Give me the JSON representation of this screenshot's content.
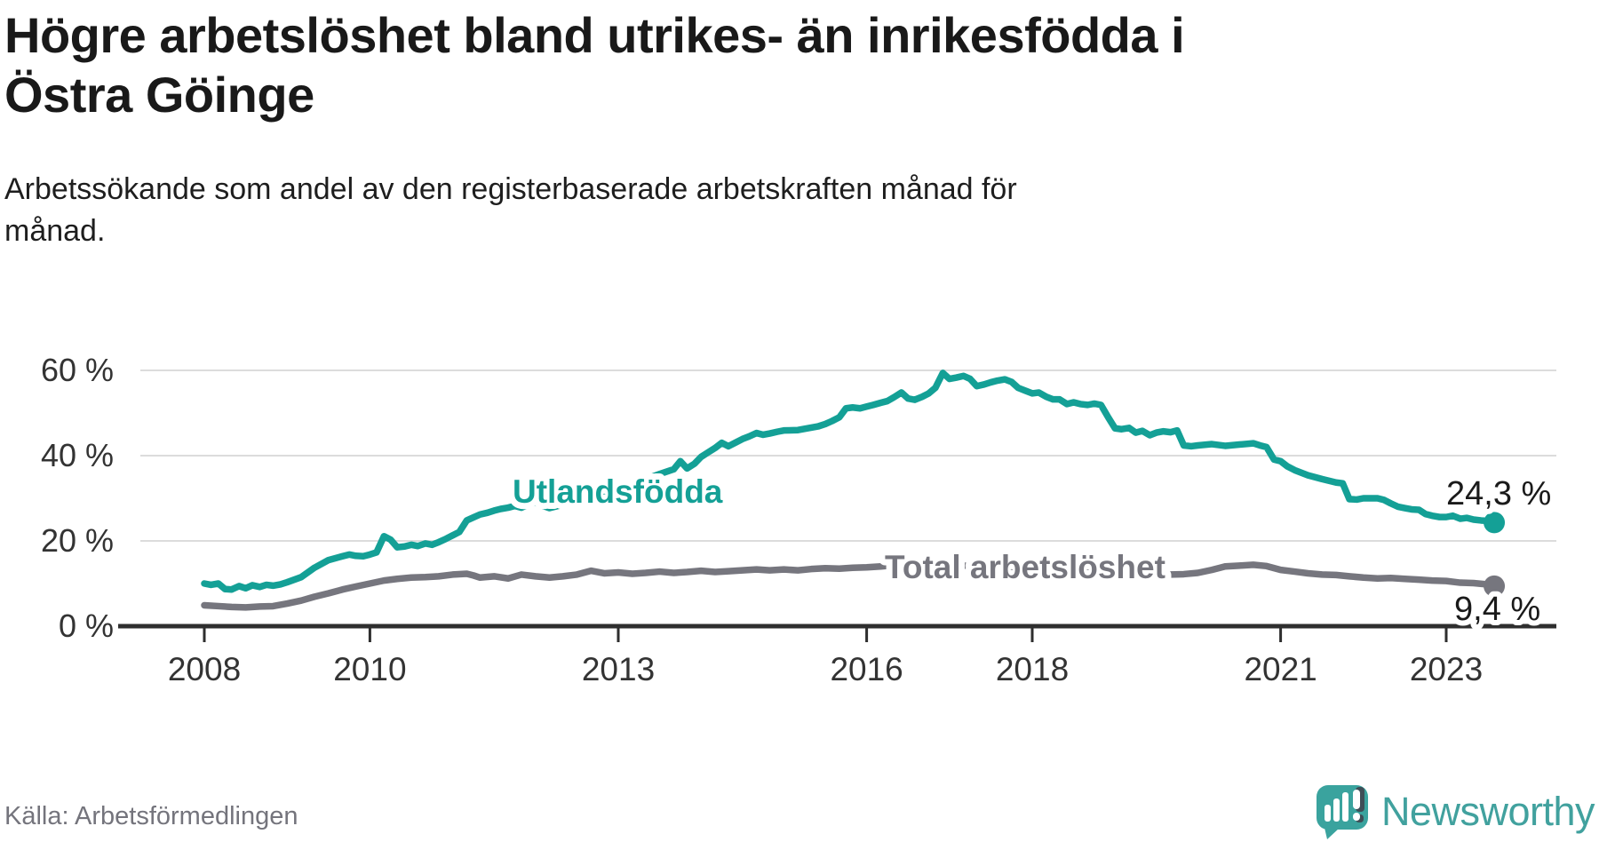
{
  "header": {
    "title_line1": "Högre arbetslöshet bland utrikes- än inrikesfödda i",
    "title_line2": "Östra Göinge",
    "subtitle_line1": "Arbetssökande som andel av den registerbaserade arbetskraften månad för",
    "subtitle_line2": "månad."
  },
  "footer": {
    "source": "Källa: Arbetsförmedlingen",
    "brand": "Newsworthy"
  },
  "colors": {
    "foreign_born": "#14a096",
    "total": "#76767e",
    "gridline": "#dcdcdc",
    "axis": "#2e2e2e",
    "tick_text": "#333333",
    "value_text": "#1a1a1a",
    "logo_teal": "#3aa39e",
    "logo_dark": "#3f4e57"
  },
  "chart_data": {
    "type": "line",
    "title": "Högre arbetslöshet bland utrikes- än inrikesfödda i Östra Göinge",
    "subtitle": "Arbetssökande som andel av den registerbaserade arbetskraften månad för månad.",
    "unit": "%",
    "x_axis": {
      "ticks": [
        2008,
        2010,
        2013,
        2016,
        2018,
        2021,
        2023
      ],
      "range": [
        2008,
        2023.58
      ]
    },
    "y_axis": {
      "ticks": [
        {
          "value": 60,
          "label": "60 %"
        },
        {
          "value": 40,
          "label": "40 %"
        },
        {
          "value": 20,
          "label": "20 %"
        },
        {
          "value": 0,
          "label": "0 %"
        }
      ],
      "range": [
        0,
        65
      ]
    },
    "grid": true,
    "legend_position": "inline-labels",
    "series": [
      {
        "name": "Utlandsfödda",
        "color": "#14a096",
        "end_value": 24.3,
        "end_label": "24,3 %",
        "points": [
          [
            2008.0,
            10.0
          ],
          [
            2008.08,
            9.7
          ],
          [
            2008.17,
            10.0
          ],
          [
            2008.25,
            8.7
          ],
          [
            2008.33,
            8.6
          ],
          [
            2008.42,
            9.4
          ],
          [
            2008.5,
            8.9
          ],
          [
            2008.58,
            9.6
          ],
          [
            2008.67,
            9.2
          ],
          [
            2008.75,
            9.7
          ],
          [
            2008.83,
            9.5
          ],
          [
            2008.92,
            9.8
          ],
          [
            2009.0,
            10.3
          ],
          [
            2009.17,
            11.5
          ],
          [
            2009.33,
            13.7
          ],
          [
            2009.5,
            15.5
          ],
          [
            2009.67,
            16.4
          ],
          [
            2009.75,
            16.8
          ],
          [
            2009.83,
            16.5
          ],
          [
            2009.92,
            16.4
          ],
          [
            2010.0,
            16.8
          ],
          [
            2010.08,
            17.3
          ],
          [
            2010.17,
            21.1
          ],
          [
            2010.25,
            20.3
          ],
          [
            2010.33,
            18.5
          ],
          [
            2010.42,
            18.7
          ],
          [
            2010.5,
            19.1
          ],
          [
            2010.58,
            18.8
          ],
          [
            2010.67,
            19.4
          ],
          [
            2010.75,
            19.1
          ],
          [
            2010.83,
            19.7
          ],
          [
            2010.92,
            20.5
          ],
          [
            2011.0,
            21.3
          ],
          [
            2011.08,
            22.1
          ],
          [
            2011.17,
            24.8
          ],
          [
            2011.25,
            25.5
          ],
          [
            2011.33,
            26.2
          ],
          [
            2011.42,
            26.6
          ],
          [
            2011.5,
            27.1
          ],
          [
            2011.58,
            27.5
          ],
          [
            2011.67,
            27.8
          ],
          [
            2011.75,
            28.2
          ],
          [
            2011.83,
            27.8
          ],
          [
            2011.92,
            28.6
          ],
          [
            2012.0,
            29.0
          ],
          [
            2012.08,
            28.3
          ],
          [
            2012.17,
            27.7
          ],
          [
            2012.33,
            28.5
          ],
          [
            2012.5,
            29.7
          ],
          [
            2012.67,
            30.8
          ],
          [
            2012.83,
            31.7
          ],
          [
            2013.0,
            32.7
          ],
          [
            2013.17,
            33.6
          ],
          [
            2013.33,
            34.5
          ],
          [
            2013.5,
            35.7
          ],
          [
            2013.67,
            36.8
          ],
          [
            2013.75,
            38.7
          ],
          [
            2013.83,
            37.0
          ],
          [
            2013.92,
            38.1
          ],
          [
            2014.0,
            39.7
          ],
          [
            2014.08,
            40.7
          ],
          [
            2014.17,
            41.8
          ],
          [
            2014.25,
            43.0
          ],
          [
            2014.33,
            42.2
          ],
          [
            2014.42,
            43.1
          ],
          [
            2014.5,
            43.9
          ],
          [
            2014.58,
            44.5
          ],
          [
            2014.67,
            45.3
          ],
          [
            2014.75,
            44.9
          ],
          [
            2014.83,
            45.2
          ],
          [
            2014.92,
            45.6
          ],
          [
            2015.0,
            45.9
          ],
          [
            2015.17,
            46.0
          ],
          [
            2015.25,
            46.3
          ],
          [
            2015.42,
            46.9
          ],
          [
            2015.5,
            47.4
          ],
          [
            2015.58,
            48.1
          ],
          [
            2015.67,
            49.0
          ],
          [
            2015.75,
            51.1
          ],
          [
            2015.83,
            51.3
          ],
          [
            2015.92,
            51.1
          ],
          [
            2016.0,
            51.5
          ],
          [
            2016.08,
            51.9
          ],
          [
            2016.17,
            52.4
          ],
          [
            2016.25,
            52.8
          ],
          [
            2016.33,
            53.7
          ],
          [
            2016.42,
            54.8
          ],
          [
            2016.5,
            53.4
          ],
          [
            2016.58,
            53.1
          ],
          [
            2016.67,
            53.8
          ],
          [
            2016.75,
            54.6
          ],
          [
            2016.83,
            55.9
          ],
          [
            2016.92,
            59.4
          ],
          [
            2017.0,
            58.0
          ],
          [
            2017.08,
            58.3
          ],
          [
            2017.17,
            58.7
          ],
          [
            2017.25,
            58.0
          ],
          [
            2017.33,
            56.3
          ],
          [
            2017.42,
            56.7
          ],
          [
            2017.5,
            57.2
          ],
          [
            2017.58,
            57.6
          ],
          [
            2017.67,
            57.9
          ],
          [
            2017.75,
            57.3
          ],
          [
            2017.83,
            55.9
          ],
          [
            2017.92,
            55.2
          ],
          [
            2018.0,
            54.6
          ],
          [
            2018.08,
            54.8
          ],
          [
            2018.17,
            53.8
          ],
          [
            2018.25,
            53.2
          ],
          [
            2018.33,
            53.2
          ],
          [
            2018.42,
            52.1
          ],
          [
            2018.5,
            52.5
          ],
          [
            2018.58,
            52.1
          ],
          [
            2018.67,
            51.9
          ],
          [
            2018.75,
            52.2
          ],
          [
            2018.83,
            51.9
          ],
          [
            2018.92,
            48.9
          ],
          [
            2019.0,
            46.4
          ],
          [
            2019.08,
            46.2
          ],
          [
            2019.17,
            46.5
          ],
          [
            2019.25,
            45.4
          ],
          [
            2019.33,
            45.8
          ],
          [
            2019.42,
            44.8
          ],
          [
            2019.5,
            45.4
          ],
          [
            2019.58,
            45.7
          ],
          [
            2019.67,
            45.5
          ],
          [
            2019.75,
            45.9
          ],
          [
            2019.83,
            42.4
          ],
          [
            2019.92,
            42.2
          ],
          [
            2020.0,
            42.4
          ],
          [
            2020.17,
            42.7
          ],
          [
            2020.33,
            42.3
          ],
          [
            2020.5,
            42.6
          ],
          [
            2020.67,
            42.9
          ],
          [
            2020.75,
            42.4
          ],
          [
            2020.83,
            42.0
          ],
          [
            2020.92,
            39.1
          ],
          [
            2021.0,
            38.7
          ],
          [
            2021.08,
            37.5
          ],
          [
            2021.17,
            36.6
          ],
          [
            2021.33,
            35.4
          ],
          [
            2021.5,
            34.5
          ],
          [
            2021.67,
            33.7
          ],
          [
            2021.75,
            33.5
          ],
          [
            2021.83,
            29.8
          ],
          [
            2021.92,
            29.7
          ],
          [
            2022.0,
            30.0
          ],
          [
            2022.17,
            30.0
          ],
          [
            2022.25,
            29.6
          ],
          [
            2022.33,
            28.8
          ],
          [
            2022.42,
            28.0
          ],
          [
            2022.5,
            27.7
          ],
          [
            2022.58,
            27.4
          ],
          [
            2022.67,
            27.3
          ],
          [
            2022.75,
            26.3
          ],
          [
            2022.83,
            25.9
          ],
          [
            2022.92,
            25.6
          ],
          [
            2023.0,
            25.6
          ],
          [
            2023.08,
            25.9
          ],
          [
            2023.17,
            25.2
          ],
          [
            2023.25,
            25.4
          ],
          [
            2023.33,
            25.0
          ],
          [
            2023.42,
            24.8
          ],
          [
            2023.5,
            24.7
          ],
          [
            2023.58,
            24.3
          ]
        ]
      },
      {
        "name": "Total arbetslöshet",
        "color": "#76767e",
        "end_value": 9.4,
        "end_label": "9,4 %",
        "points": [
          [
            2008.0,
            4.9
          ],
          [
            2008.17,
            4.7
          ],
          [
            2008.33,
            4.5
          ],
          [
            2008.5,
            4.4
          ],
          [
            2008.67,
            4.6
          ],
          [
            2008.83,
            4.7
          ],
          [
            2009.0,
            5.3
          ],
          [
            2009.17,
            6.0
          ],
          [
            2009.33,
            6.9
          ],
          [
            2009.5,
            7.7
          ],
          [
            2009.67,
            8.6
          ],
          [
            2009.83,
            9.3
          ],
          [
            2010.0,
            10.0
          ],
          [
            2010.17,
            10.7
          ],
          [
            2010.33,
            11.1
          ],
          [
            2010.5,
            11.4
          ],
          [
            2010.67,
            11.5
          ],
          [
            2010.83,
            11.7
          ],
          [
            2011.0,
            12.1
          ],
          [
            2011.17,
            12.3
          ],
          [
            2011.25,
            11.9
          ],
          [
            2011.33,
            11.4
          ],
          [
            2011.5,
            11.7
          ],
          [
            2011.67,
            11.2
          ],
          [
            2011.83,
            12.1
          ],
          [
            2012.0,
            11.7
          ],
          [
            2012.17,
            11.4
          ],
          [
            2012.33,
            11.7
          ],
          [
            2012.5,
            12.1
          ],
          [
            2012.67,
            13.0
          ],
          [
            2012.83,
            12.4
          ],
          [
            2013.0,
            12.6
          ],
          [
            2013.17,
            12.3
          ],
          [
            2013.33,
            12.5
          ],
          [
            2013.5,
            12.8
          ],
          [
            2013.67,
            12.5
          ],
          [
            2013.83,
            12.7
          ],
          [
            2014.0,
            13.0
          ],
          [
            2014.17,
            12.7
          ],
          [
            2014.33,
            12.9
          ],
          [
            2014.5,
            13.1
          ],
          [
            2014.67,
            13.3
          ],
          [
            2014.83,
            13.1
          ],
          [
            2015.0,
            13.3
          ],
          [
            2015.17,
            13.1
          ],
          [
            2015.33,
            13.4
          ],
          [
            2015.5,
            13.6
          ],
          [
            2015.67,
            13.5
          ],
          [
            2015.83,
            13.7
          ],
          [
            2016.0,
            13.8
          ],
          [
            2016.17,
            14.0
          ],
          [
            2016.33,
            14.3
          ],
          [
            2016.5,
            14.5
          ],
          [
            2016.67,
            14.3
          ],
          [
            2016.83,
            14.5
          ],
          [
            2017.0,
            14.4
          ],
          [
            2017.17,
            14.2
          ],
          [
            2017.33,
            14.0
          ],
          [
            2017.5,
            13.9
          ],
          [
            2017.67,
            13.8
          ],
          [
            2017.83,
            13.6
          ],
          [
            2018.0,
            13.4
          ],
          [
            2018.17,
            13.2
          ],
          [
            2018.33,
            13.0
          ],
          [
            2018.5,
            12.8
          ],
          [
            2018.67,
            12.6
          ],
          [
            2018.83,
            12.4
          ],
          [
            2019.0,
            12.3
          ],
          [
            2019.17,
            12.2
          ],
          [
            2019.33,
            12.1
          ],
          [
            2019.5,
            12.0
          ],
          [
            2019.67,
            12.1
          ],
          [
            2019.83,
            12.2
          ],
          [
            2020.0,
            12.5
          ],
          [
            2020.17,
            13.2
          ],
          [
            2020.33,
            14.0
          ],
          [
            2020.5,
            14.2
          ],
          [
            2020.67,
            14.4
          ],
          [
            2020.83,
            14.1
          ],
          [
            2021.0,
            13.2
          ],
          [
            2021.17,
            12.8
          ],
          [
            2021.33,
            12.4
          ],
          [
            2021.5,
            12.1
          ],
          [
            2021.67,
            12.0
          ],
          [
            2021.83,
            11.7
          ],
          [
            2022.0,
            11.4
          ],
          [
            2022.17,
            11.2
          ],
          [
            2022.33,
            11.3
          ],
          [
            2022.5,
            11.1
          ],
          [
            2022.67,
            10.9
          ],
          [
            2022.83,
            10.7
          ],
          [
            2023.0,
            10.6
          ],
          [
            2023.17,
            10.2
          ],
          [
            2023.33,
            10.1
          ],
          [
            2023.5,
            9.8
          ],
          [
            2023.58,
            9.4
          ]
        ]
      }
    ]
  }
}
